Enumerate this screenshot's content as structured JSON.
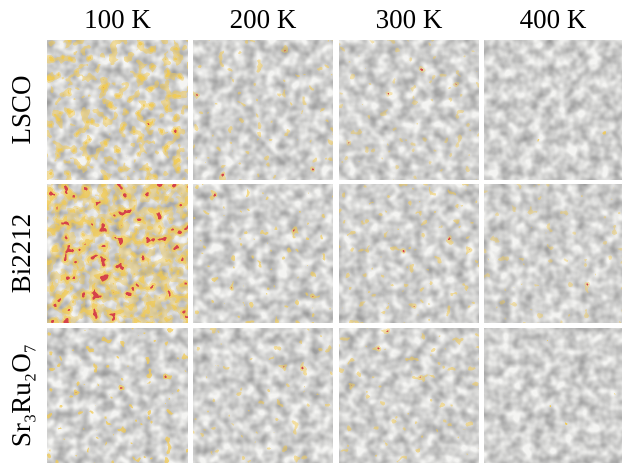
{
  "columns": [
    "100 K",
    "200 K",
    "300 K",
    "400 K"
  ],
  "rows": [
    "LSCO",
    "Bi2212",
    "Sr₃Ru₂O₇"
  ]
}
